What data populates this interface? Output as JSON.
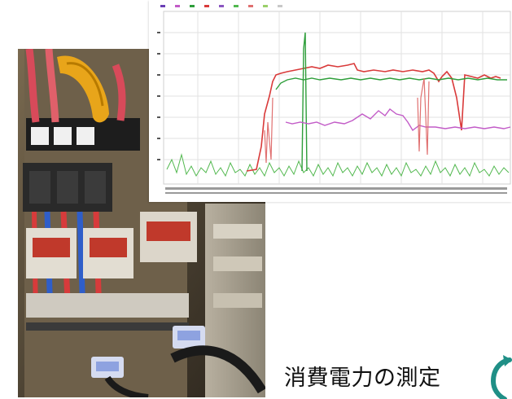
{
  "slide": {
    "caption": "消費電力の測定"
  },
  "trend_chart": {
    "series_colors": [
      "#d93a3a",
      "#2e9e3a",
      "#c25bc7",
      "#e07070",
      "#52b84f"
    ]
  },
  "icons": {
    "logo": "circular-arrow-logo"
  }
}
